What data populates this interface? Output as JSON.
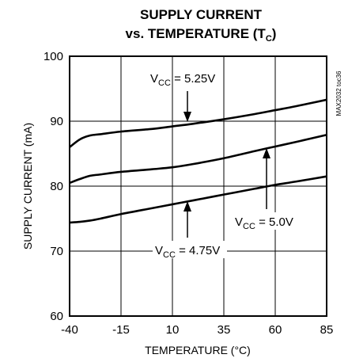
{
  "chart_data": {
    "type": "line",
    "title_line1": "SUPPLY CURRENT",
    "title_line2_main": "vs. TEMPERATURE (T",
    "title_line2_sub": "C",
    "title_line2_end": ")",
    "xlabel": "TEMPERATURE (°C)",
    "ylabel": "SUPPLY CURRENT (mA)",
    "xlim": [
      -40,
      85
    ],
    "ylim": [
      60,
      100
    ],
    "x_ticks": [
      -40,
      -15,
      10,
      35,
      60,
      85
    ],
    "y_ticks": [
      60,
      70,
      80,
      90,
      100
    ],
    "grid": true,
    "watermark": "MAX2032 toc36",
    "series": [
      {
        "name": "VCC = 5.25V",
        "label_main": "V",
        "label_sub": "CC",
        "label_rest": " = 5.25V",
        "x": [
          -40,
          -35,
          -30,
          -25,
          -15,
          0,
          10,
          20,
          35,
          50,
          60,
          70,
          85
        ],
        "y": [
          86.0,
          87.2,
          87.8,
          88.0,
          88.4,
          88.8,
          89.2,
          89.6,
          90.3,
          91.1,
          91.7,
          92.3,
          93.3
        ]
      },
      {
        "name": "VCC = 5.0V",
        "label_main": "V",
        "label_sub": "CC",
        "label_rest": " = 5.0V",
        "x": [
          -40,
          -35,
          -30,
          -25,
          -15,
          0,
          10,
          20,
          35,
          50,
          60,
          70,
          85
        ],
        "y": [
          80.5,
          81.1,
          81.6,
          81.8,
          82.2,
          82.6,
          82.9,
          83.4,
          84.3,
          85.4,
          86.1,
          86.8,
          87.9
        ]
      },
      {
        "name": "VCC = 4.75V",
        "label_main": "V",
        "label_sub": "CC",
        "label_rest": " =  4.75V",
        "x": [
          -40,
          -35,
          -30,
          -25,
          -15,
          0,
          10,
          20,
          35,
          50,
          60,
          70,
          85
        ],
        "y": [
          74.4,
          74.5,
          74.7,
          75.0,
          75.7,
          76.6,
          77.2,
          77.8,
          78.7,
          79.6,
          80.2,
          80.7,
          81.5
        ]
      }
    ]
  }
}
